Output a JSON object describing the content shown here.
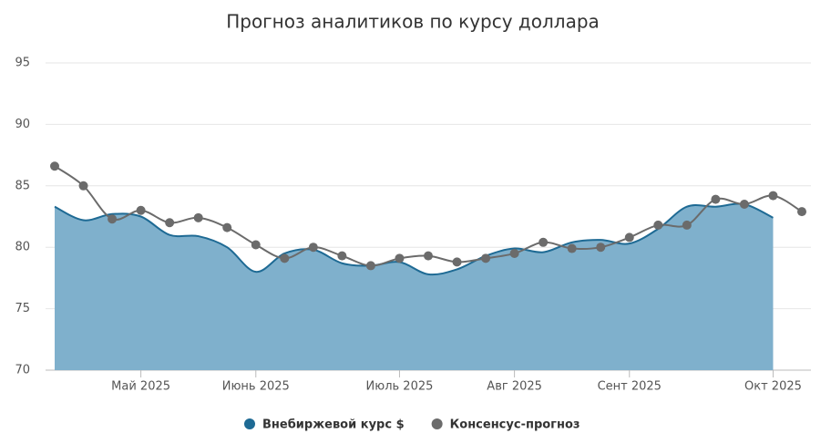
{
  "chart_data": {
    "type": "line",
    "title": "Прогноз аналитиков по курсу доллара",
    "categories": [
      null,
      null,
      null,
      "Май 2025",
      null,
      null,
      null,
      "Июнь 2025",
      null,
      null,
      null,
      null,
      "Июль 2025",
      null,
      null,
      null,
      "Авг 2025",
      null,
      null,
      null,
      "Сент 2025",
      null,
      null,
      null,
      null,
      "Окт 2025",
      null
    ],
    "series": [
      {
        "name": "Внебиржевой курс $",
        "color": "#1e6a94",
        "fill": "#7fb0cc",
        "area": true,
        "values": [
          83.3,
          82.2,
          82.7,
          82.5,
          81.0,
          80.9,
          80.0,
          78.0,
          79.5,
          79.8,
          78.7,
          78.5,
          78.8,
          77.8,
          78.2,
          79.3,
          79.9,
          79.6,
          80.4,
          80.6,
          80.3,
          81.5,
          83.3,
          83.3,
          83.5,
          82.4,
          null
        ]
      },
      {
        "name": "Консенсус-прогноз",
        "color": "#6b6b6b",
        "area": false,
        "values": [
          86.6,
          85.0,
          82.3,
          83.0,
          82.0,
          82.4,
          81.6,
          80.2,
          79.1,
          80.0,
          79.3,
          78.5,
          79.1,
          79.3,
          78.8,
          79.1,
          79.5,
          80.4,
          79.9,
          80.0,
          80.8,
          81.8,
          81.8,
          83.9,
          83.5,
          84.2,
          82.9
        ]
      }
    ],
    "ylim": [
      70,
      95
    ],
    "yticks": [
      70,
      75,
      80,
      85,
      90,
      95
    ],
    "grid": true,
    "legend": "bottom"
  }
}
